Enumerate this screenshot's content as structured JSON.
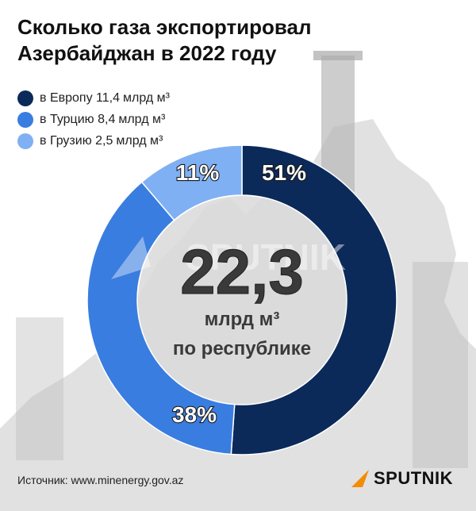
{
  "title_lines": [
    "Сколько газа экспортировал",
    "Азербайджан в 2022 году"
  ],
  "colors": {
    "europe": "#0b2a5a",
    "turkey": "#3a7de0",
    "georgia": "#7fb0f3",
    "center": "#d9d9d9",
    "photo": "#c9c9c9"
  },
  "chart_data": {
    "type": "pie",
    "unit": "млрд м³",
    "categories": [
      "в Европу",
      "в Турцию",
      "в Грузию"
    ],
    "values": [
      11.4,
      8.4,
      2.5
    ],
    "display_values": [
      "11,4",
      "8,4",
      "2,5"
    ],
    "percent_labels": [
      "51%",
      "38%",
      "11%"
    ],
    "total": {
      "value": "22,3",
      "unit": "млрд м³",
      "caption": "по республике"
    }
  },
  "source": "Источник: www.minenergy.gov.az",
  "brand": {
    "name": "SPUTNIK",
    "watermark": "SPUTNIK",
    "icon": "sputnik-logo-icon"
  }
}
